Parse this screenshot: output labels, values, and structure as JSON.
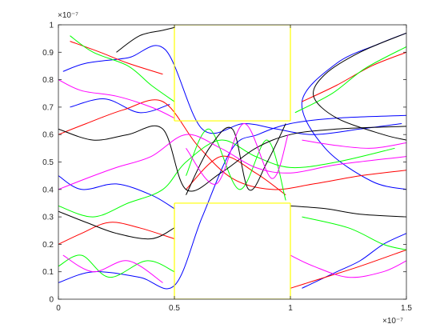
{
  "chart_data": {
    "type": "line",
    "title": "",
    "xlabel": "",
    "ylabel": "",
    "xlim": [
      0,
      1.5
    ],
    "ylim": [
      0,
      1
    ],
    "x_exponent_label": "×10⁻⁷",
    "y_exponent_label": "×10⁻⁷",
    "x_ticks": [
      0,
      0.5,
      1,
      1.5
    ],
    "x_tick_labels": [
      "0",
      "0.5",
      "1",
      "1.5"
    ],
    "y_ticks": [
      0,
      0.1,
      0.2,
      0.3,
      0.4,
      0.5,
      0.6,
      0.7,
      0.8,
      0.9,
      1
    ],
    "y_tick_labels": [
      "0",
      "0.1",
      "0.2",
      "0.3",
      "0.4",
      "0.5",
      "0.6",
      "0.7",
      "0.8",
      "0.9",
      "1"
    ],
    "grid": false,
    "colors": {
      "boundary": "#ffff00",
      "axis": "#262626",
      "trajectories": [
        "#0000ff",
        "#ff0000",
        "#00ff00",
        "#000000",
        "#ff00ff"
      ]
    },
    "boundary": {
      "x": [
        0.5,
        0.5,
        0.5,
        1.0,
        1.0,
        1.0,
        1.0,
        0.5,
        0.5,
        1.0,
        1.0
      ],
      "y": [
        0.0,
        1.0,
        0.65,
        0.65,
        1.0,
        0.0,
        0.35,
        0.35,
        0.0,
        0.0,
        1.0
      ],
      "segments": [
        {
          "x": [
            0.5,
            0.5
          ],
          "y": [
            0.0,
            0.35
          ]
        },
        {
          "x": [
            0.5,
            1.0
          ],
          "y": [
            0.35,
            0.35
          ]
        },
        {
          "x": [
            1.0,
            1.0
          ],
          "y": [
            0.35,
            0.0
          ]
        },
        {
          "x": [
            0.5,
            0.5
          ],
          "y": [
            1.0,
            0.65
          ]
        },
        {
          "x": [
            0.5,
            1.0
          ],
          "y": [
            0.65,
            0.65
          ]
        },
        {
          "x": [
            1.0,
            1.0
          ],
          "y": [
            0.65,
            1.0
          ]
        },
        {
          "x": [
            0.5,
            1.0
          ],
          "y": [
            1.0,
            1.0
          ]
        },
        {
          "x": [
            0.5,
            1.0
          ],
          "y": [
            0.0,
            0.0
          ]
        }
      ]
    },
    "series": [
      {
        "color": "blue",
        "x": [
          0.02,
          0.12,
          0.3,
          0.46,
          0.62,
          0.8,
          0.94,
          1.1,
          1.3,
          1.48
        ],
        "y": [
          0.83,
          0.86,
          0.88,
          0.91,
          0.62,
          0.64,
          0.62,
          0.6,
          0.62,
          0.64
        ]
      },
      {
        "color": "blue",
        "x": [
          0.0,
          0.15,
          0.35,
          0.5,
          0.62,
          0.75,
          0.86,
          1.0,
          1.2,
          1.5
        ],
        "y": [
          0.06,
          0.1,
          0.08,
          0.05,
          0.3,
          0.55,
          0.6,
          0.64,
          0.66,
          0.67
        ]
      },
      {
        "color": "blue",
        "x": [
          1.5,
          1.38,
          1.2,
          1.05,
          1.15,
          1.35,
          1.5
        ],
        "y": [
          0.97,
          0.93,
          0.86,
          0.72,
          0.55,
          0.43,
          0.4
        ]
      },
      {
        "color": "blue",
        "x": [
          1.5,
          1.4,
          1.3,
          1.2,
          1.1,
          1.05
        ],
        "y": [
          0.24,
          0.2,
          0.14,
          0.1,
          0.06,
          0.04
        ]
      },
      {
        "color": "blue",
        "x": [
          0.0,
          0.1,
          0.25,
          0.4,
          0.5
        ],
        "y": [
          0.45,
          0.4,
          0.42,
          0.38,
          0.33
        ]
      },
      {
        "color": "blue",
        "x": [
          0.05,
          0.2,
          0.35,
          0.48
        ],
        "y": [
          0.7,
          0.73,
          0.68,
          0.71
        ]
      },
      {
        "color": "red",
        "x": [
          0.0,
          0.12,
          0.28,
          0.45,
          0.6,
          0.75,
          0.92,
          1.1,
          1.3,
          1.5
        ],
        "y": [
          0.6,
          0.64,
          0.69,
          0.72,
          0.56,
          0.44,
          0.4,
          0.42,
          0.45,
          0.47
        ]
      },
      {
        "color": "red",
        "x": [
          0.0,
          0.1,
          0.22,
          0.35,
          0.5
        ],
        "y": [
          0.2,
          0.24,
          0.28,
          0.26,
          0.22
        ]
      },
      {
        "color": "red",
        "x": [
          1.0,
          1.15,
          1.3,
          1.5
        ],
        "y": [
          0.04,
          0.08,
          0.12,
          0.18
        ]
      },
      {
        "color": "red",
        "x": [
          1.05,
          1.2,
          1.35,
          1.5
        ],
        "y": [
          0.72,
          0.78,
          0.85,
          0.9
        ]
      },
      {
        "color": "red",
        "x": [
          0.05,
          0.18,
          0.3,
          0.45
        ],
        "y": [
          0.94,
          0.9,
          0.86,
          0.82
        ]
      },
      {
        "color": "red",
        "x": [
          0.55,
          0.7,
          0.85,
          0.98
        ],
        "y": [
          0.4,
          0.52,
          0.46,
          0.38
        ]
      },
      {
        "color": "green",
        "x": [
          0.0,
          0.15,
          0.3,
          0.45,
          0.55,
          0.7,
          0.85,
          1.0,
          1.2,
          1.45
        ],
        "y": [
          0.34,
          0.3,
          0.35,
          0.4,
          0.5,
          0.58,
          0.52,
          0.48,
          0.5,
          0.55
        ]
      },
      {
        "color": "green",
        "x": [
          0.05,
          0.15,
          0.3,
          0.4,
          0.5
        ],
        "y": [
          0.96,
          0.9,
          0.85,
          0.78,
          0.72
        ]
      },
      {
        "color": "green",
        "x": [
          0.0,
          0.1,
          0.22,
          0.38,
          0.5
        ],
        "y": [
          0.12,
          0.16,
          0.08,
          0.14,
          0.1
        ]
      },
      {
        "color": "green",
        "x": [
          1.02,
          1.18,
          1.32,
          1.5
        ],
        "y": [
          0.68,
          0.75,
          0.84,
          0.92
        ]
      },
      {
        "color": "green",
        "x": [
          0.55,
          0.65,
          0.78,
          0.9,
          0.98
        ],
        "y": [
          0.45,
          0.62,
          0.4,
          0.58,
          0.36
        ]
      },
      {
        "color": "green",
        "x": [
          1.05,
          1.25,
          1.4,
          1.5
        ],
        "y": [
          0.3,
          0.26,
          0.2,
          0.18
        ]
      },
      {
        "color": "black",
        "x": [
          0.0,
          0.15,
          0.3,
          0.45,
          0.55,
          0.7,
          0.85,
          1.0,
          1.2,
          1.5
        ],
        "y": [
          0.62,
          0.58,
          0.6,
          0.62,
          0.4,
          0.46,
          0.55,
          0.6,
          0.62,
          0.63
        ]
      },
      {
        "color": "black",
        "x": [
          0.25,
          0.35,
          0.45,
          0.5
        ],
        "y": [
          0.9,
          0.96,
          0.98,
          0.99
        ]
      },
      {
        "color": "black",
        "x": [
          1.5,
          1.3,
          1.15,
          1.1,
          1.2,
          1.4,
          1.5
        ],
        "y": [
          0.97,
          0.9,
          0.82,
          0.74,
          0.66,
          0.6,
          0.58
        ]
      },
      {
        "color": "black",
        "x": [
          0.0,
          0.12,
          0.25,
          0.4,
          0.5
        ],
        "y": [
          0.32,
          0.28,
          0.24,
          0.22,
          0.26
        ]
      },
      {
        "color": "black",
        "x": [
          0.55,
          0.65,
          0.75,
          0.82,
          0.9,
          0.98
        ],
        "y": [
          0.38,
          0.55,
          0.62,
          0.4,
          0.5,
          0.64
        ]
      },
      {
        "color": "black",
        "x": [
          1.0,
          1.15,
          1.3,
          1.5
        ],
        "y": [
          0.34,
          0.33,
          0.31,
          0.3
        ]
      },
      {
        "color": "magenta",
        "x": [
          0.0,
          0.12,
          0.25,
          0.4,
          0.55,
          0.7,
          0.85,
          1.0,
          1.2,
          1.5
        ],
        "y": [
          0.4,
          0.44,
          0.48,
          0.52,
          0.6,
          0.55,
          0.48,
          0.46,
          0.49,
          0.52
        ]
      },
      {
        "color": "magenta",
        "x": [
          0.0,
          0.1,
          0.25,
          0.4,
          0.5
        ],
        "y": [
          0.8,
          0.76,
          0.74,
          0.7,
          0.66
        ]
      },
      {
        "color": "magenta",
        "x": [
          1.0,
          1.1,
          1.25,
          1.4,
          1.5
        ],
        "y": [
          0.16,
          0.12,
          0.08,
          0.1,
          0.14
        ]
      },
      {
        "color": "magenta",
        "x": [
          1.05,
          1.2,
          1.35,
          1.5
        ],
        "y": [
          0.58,
          0.56,
          0.55,
          0.57
        ]
      },
      {
        "color": "magenta",
        "x": [
          0.02,
          0.15,
          0.3,
          0.45
        ],
        "y": [
          0.16,
          0.1,
          0.14,
          0.06
        ]
      },
      {
        "color": "magenta",
        "x": [
          0.55,
          0.68,
          0.8,
          0.92,
          0.99
        ],
        "y": [
          0.55,
          0.42,
          0.64,
          0.44,
          0.6
        ]
      }
    ]
  }
}
